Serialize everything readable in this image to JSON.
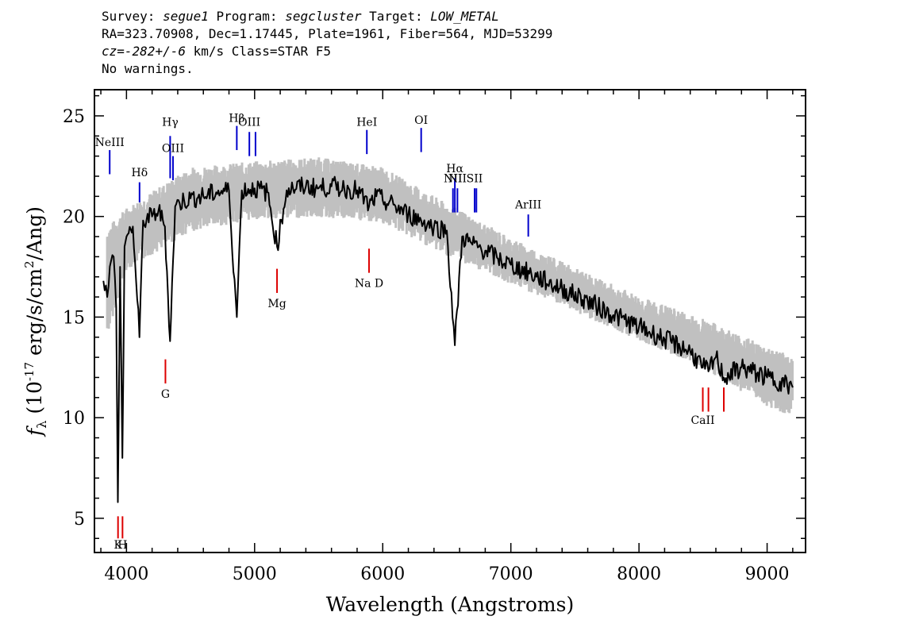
{
  "header": {
    "line1": {
      "survey_label": "Survey: ",
      "survey": "segue1",
      "program_label": " Program: ",
      "program": "segcluster",
      "target_label": " Target: ",
      "target": "LOW_METAL"
    },
    "line2": "RA=323.70908, Dec=1.17445, Plate=1961, Fiber=564, MJD=53299",
    "line3": {
      "cz_label": "cz=",
      "cz": "-282+/-6",
      "rest": " km/s Class=STAR F5"
    },
    "line4": "No warnings."
  },
  "chart_data": {
    "type": "line",
    "xlabel": "Wavelength (Angstroms)",
    "ylabel_main": "f",
    "ylabel_sub": "λ",
    "ylabel_pre": " (10",
    "ylabel_exp": "-17",
    "ylabel_post": " erg/s/cm",
    "ylabel_exp2": "2",
    "ylabel_end": "/Ang)",
    "xlim": [
      3750,
      9300
    ],
    "ylim": [
      3.3,
      26.3
    ],
    "x_ticks": [
      4000,
      5000,
      6000,
      7000,
      8000,
      9000
    ],
    "x_tick_labels": [
      "4000",
      "5000",
      "6000",
      "7000",
      "8000",
      "9000"
    ],
    "y_ticks": [
      5,
      10,
      15,
      20,
      25
    ],
    "y_tick_labels": [
      "5",
      "10",
      "15",
      "20",
      "25"
    ],
    "colors": {
      "flux": "#000000",
      "error": "#c0c0c0",
      "emission": "#0000cc",
      "absorption": "#dd0000"
    },
    "series": [
      {
        "role": "flux",
        "x": [
          3820,
          3850,
          3880,
          3900,
          3920,
          3933,
          3950,
          3968,
          3985,
          4000,
          4050,
          4101,
          4130,
          4200,
          4250,
          4300,
          4340,
          4380,
          4450,
          4500,
          4600,
          4700,
          4800,
          4861,
          4900,
          5000,
          5100,
          5175,
          5250,
          5300,
          5400,
          5500,
          5600,
          5700,
          5800,
          5893,
          5950,
          6000,
          6100,
          6200,
          6300,
          6400,
          6500,
          6563,
          6620,
          6700,
          6800,
          6900,
          7000,
          7200,
          7400,
          7600,
          7800,
          8000,
          8200,
          8400,
          8498,
          8542,
          8600,
          8662,
          8800,
          9000,
          9100,
          9200
        ],
        "y": [
          16.8,
          16.0,
          17.8,
          18.0,
          15.5,
          5.8,
          17.5,
          8.0,
          18.5,
          19.0,
          19.5,
          14.0,
          19.8,
          20.0,
          20.3,
          19.5,
          13.8,
          20.5,
          20.8,
          20.9,
          21.0,
          21.2,
          21.3,
          15.0,
          21.3,
          21.4,
          21.2,
          18.5,
          21.3,
          21.4,
          21.5,
          21.4,
          21.5,
          21.4,
          21.3,
          20.5,
          21.0,
          20.8,
          20.5,
          20.1,
          19.8,
          19.5,
          19.3,
          13.6,
          19.0,
          18.6,
          18.3,
          17.9,
          17.6,
          17.0,
          16.4,
          15.8,
          15.1,
          14.5,
          13.9,
          13.3,
          12.5,
          12.3,
          13.0,
          12.0,
          12.5,
          12.0,
          11.8,
          11.5
        ]
      },
      {
        "role": "error_band_upper",
        "x": [
          3850,
          4000,
          4500,
          5000,
          5500,
          6000,
          6500,
          7000,
          7500,
          8000,
          8500,
          9000,
          9200
        ],
        "y": [
          19.0,
          20.0,
          22.0,
          22.3,
          22.5,
          22.0,
          20.2,
          18.5,
          17.0,
          15.6,
          14.5,
          13.1,
          12.6
        ]
      },
      {
        "role": "error_band_lower",
        "x": [
          3850,
          4000,
          4500,
          5000,
          5500,
          6000,
          6500,
          7000,
          7500,
          8000,
          8500,
          9000,
          9200
        ],
        "y": [
          14.5,
          17.8,
          19.7,
          20.3,
          20.4,
          20.1,
          18.5,
          17.1,
          15.7,
          14.3,
          12.9,
          11.0,
          10.5
        ]
      }
    ],
    "emission_lines": [
      {
        "label": "NeIII",
        "wavelength": 3869,
        "y_bottom": 22.1,
        "y_top": 23.3,
        "label_y": 23.5
      },
      {
        "label": "Hδ",
        "wavelength": 4102,
        "y_bottom": 20.7,
        "y_top": 21.7,
        "label_y": 22.0
      },
      {
        "label": "Hγ",
        "wavelength": 4341,
        "y_bottom": 21.9,
        "y_top": 24.0,
        "label_y": 24.5
      },
      {
        "label": "OIII",
        "wavelength": 4363,
        "y_bottom": 21.8,
        "y_top": 23.0,
        "label_y": 23.2
      },
      {
        "label": "Hβ",
        "wavelength": 4861,
        "y_bottom": 23.3,
        "y_top": 24.5,
        "label_y": 24.7
      },
      {
        "label": "OIII",
        "wavelength": 4959,
        "y_bottom": 23.0,
        "y_top": 24.2,
        "label_y": 24.5
      },
      {
        "label": "",
        "wavelength": 5007,
        "y_bottom": 23.0,
        "y_top": 24.2,
        "label_y": 24.5
      },
      {
        "label": "HeI",
        "wavelength": 5876,
        "y_bottom": 23.1,
        "y_top": 24.3,
        "label_y": 24.5
      },
      {
        "label": "OI",
        "wavelength": 6300,
        "y_bottom": 23.2,
        "y_top": 24.4,
        "label_y": 24.6
      },
      {
        "label": "NII",
        "wavelength": 6548,
        "y_bottom": 20.2,
        "y_top": 21.4,
        "label_y": 21.7
      },
      {
        "label": "Hα",
        "wavelength": 6563,
        "y_bottom": 20.2,
        "y_top": 21.9,
        "label_y": 22.2
      },
      {
        "label": "NII",
        "wavelength": 6583,
        "y_bottom": 20.2,
        "y_top": 21.4,
        "label_y": 21.7
      },
      {
        "label": "SII",
        "wavelength": 6717,
        "y_bottom": 20.2,
        "y_top": 21.4,
        "label_y": 21.7
      },
      {
        "label": "",
        "wavelength": 6731,
        "y_bottom": 20.2,
        "y_top": 21.4,
        "label_y": 21.7
      },
      {
        "label": "ArIII",
        "wavelength": 7136,
        "y_bottom": 19.0,
        "y_top": 20.1,
        "label_y": 20.4
      }
    ],
    "absorption_lines": [
      {
        "label": "K",
        "wavelength": 3934,
        "y_bottom": 4.0,
        "y_top": 5.1,
        "label_y": 3.5
      },
      {
        "label": "H",
        "wavelength": 3969,
        "y_bottom": 4.0,
        "y_top": 5.1,
        "label_y": 3.5
      },
      {
        "label": "G",
        "wavelength": 4304,
        "y_bottom": 11.7,
        "y_top": 12.9,
        "label_y": 11.0
      },
      {
        "label": "Mg",
        "wavelength": 5175,
        "y_bottom": 16.2,
        "y_top": 17.4,
        "label_y": 15.5
      },
      {
        "label": "Na D",
        "wavelength": 5893,
        "y_bottom": 17.2,
        "y_top": 18.4,
        "label_y": 16.5
      },
      {
        "label": "CaII",
        "wavelength": 8498,
        "y_bottom": 10.3,
        "y_top": 11.5,
        "label_y": 9.7
      },
      {
        "label": "",
        "wavelength": 8542,
        "y_bottom": 10.3,
        "y_top": 11.5,
        "label_y": 9.7
      },
      {
        "label": "",
        "wavelength": 8662,
        "y_bottom": 10.3,
        "y_top": 11.5,
        "label_y": 9.7
      }
    ]
  }
}
